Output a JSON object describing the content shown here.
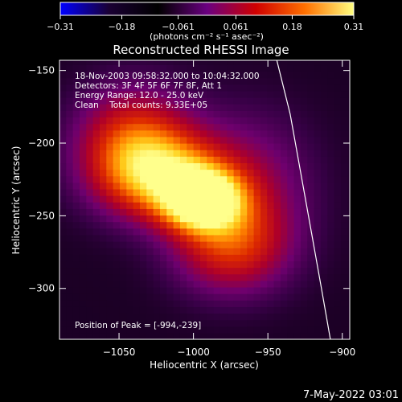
{
  "chart_data": {
    "type": "heatmap",
    "title": "Reconstructed RHESSI Image",
    "xlabel": "Heliocentric X (arcsec)",
    "ylabel": "Heliocentric Y (arcsec)",
    "xlim": [
      -1090,
      -895
    ],
    "ylim": [
      -335,
      -143
    ],
    "xticks": [
      -1050,
      -1000,
      -950,
      -900
    ],
    "xtick_labels": [
      "−1050",
      "−1000",
      "−950",
      "−900"
    ],
    "yticks": [
      -150,
      -200,
      -250,
      -300
    ],
    "ytick_labels": [
      "−150",
      "−200",
      "−250",
      "−300"
    ],
    "colorbar": {
      "min": -0.31,
      "max": 0.31,
      "ticks": [
        -0.31,
        -0.18,
        -0.061,
        0.061,
        0.18,
        0.31
      ],
      "tick_labels": [
        "−0.31",
        "−0.18",
        "−0.061",
        "0.061",
        "0.18",
        "0.31"
      ],
      "unit_label": "(photons cm⁻² s⁻¹ asec⁻²)",
      "colors": [
        "#0000ff",
        "#1a0033",
        "#000000",
        "#6a0080",
        "#d00000",
        "#ff7000",
        "#ffff80"
      ]
    },
    "annotations": [
      "18-Nov-2003 09:58:32.000 to 10:04:32.000",
      "Detectors: 3F 4F 5F 6F 7F 8F, Att 1",
      "Energy Range: 12.0 - 25.0 keV",
      "Clean    Total counts: 9.33E+05"
    ],
    "peak_label": "Position of Peak = [-994,-239]",
    "peak": {
      "x": -994,
      "y": -239
    },
    "limb_curve": [
      [
        -944,
        -143
      ],
      [
        -935,
        -180
      ],
      [
        -928,
        -220
      ],
      [
        -921,
        -260
      ],
      [
        -914,
        -300
      ],
      [
        -908,
        -335
      ]
    ],
    "sources": [
      {
        "x": -994,
        "y": -239,
        "amp": 0.3,
        "sx": 18,
        "sy": 14
      },
      {
        "x": -1020,
        "y": -222,
        "amp": 0.2,
        "sx": 28,
        "sy": 20
      },
      {
        "x": -1040,
        "y": -200,
        "amp": 0.16,
        "sx": 26,
        "sy": 26
      },
      {
        "x": -975,
        "y": -270,
        "amp": 0.14,
        "sx": 26,
        "sy": 22
      },
      {
        "x": -965,
        "y": -230,
        "amp": 0.08,
        "sx": 30,
        "sy": 34
      }
    ]
  },
  "footer": {
    "date_stamp": "7-May-2022 03:01"
  }
}
